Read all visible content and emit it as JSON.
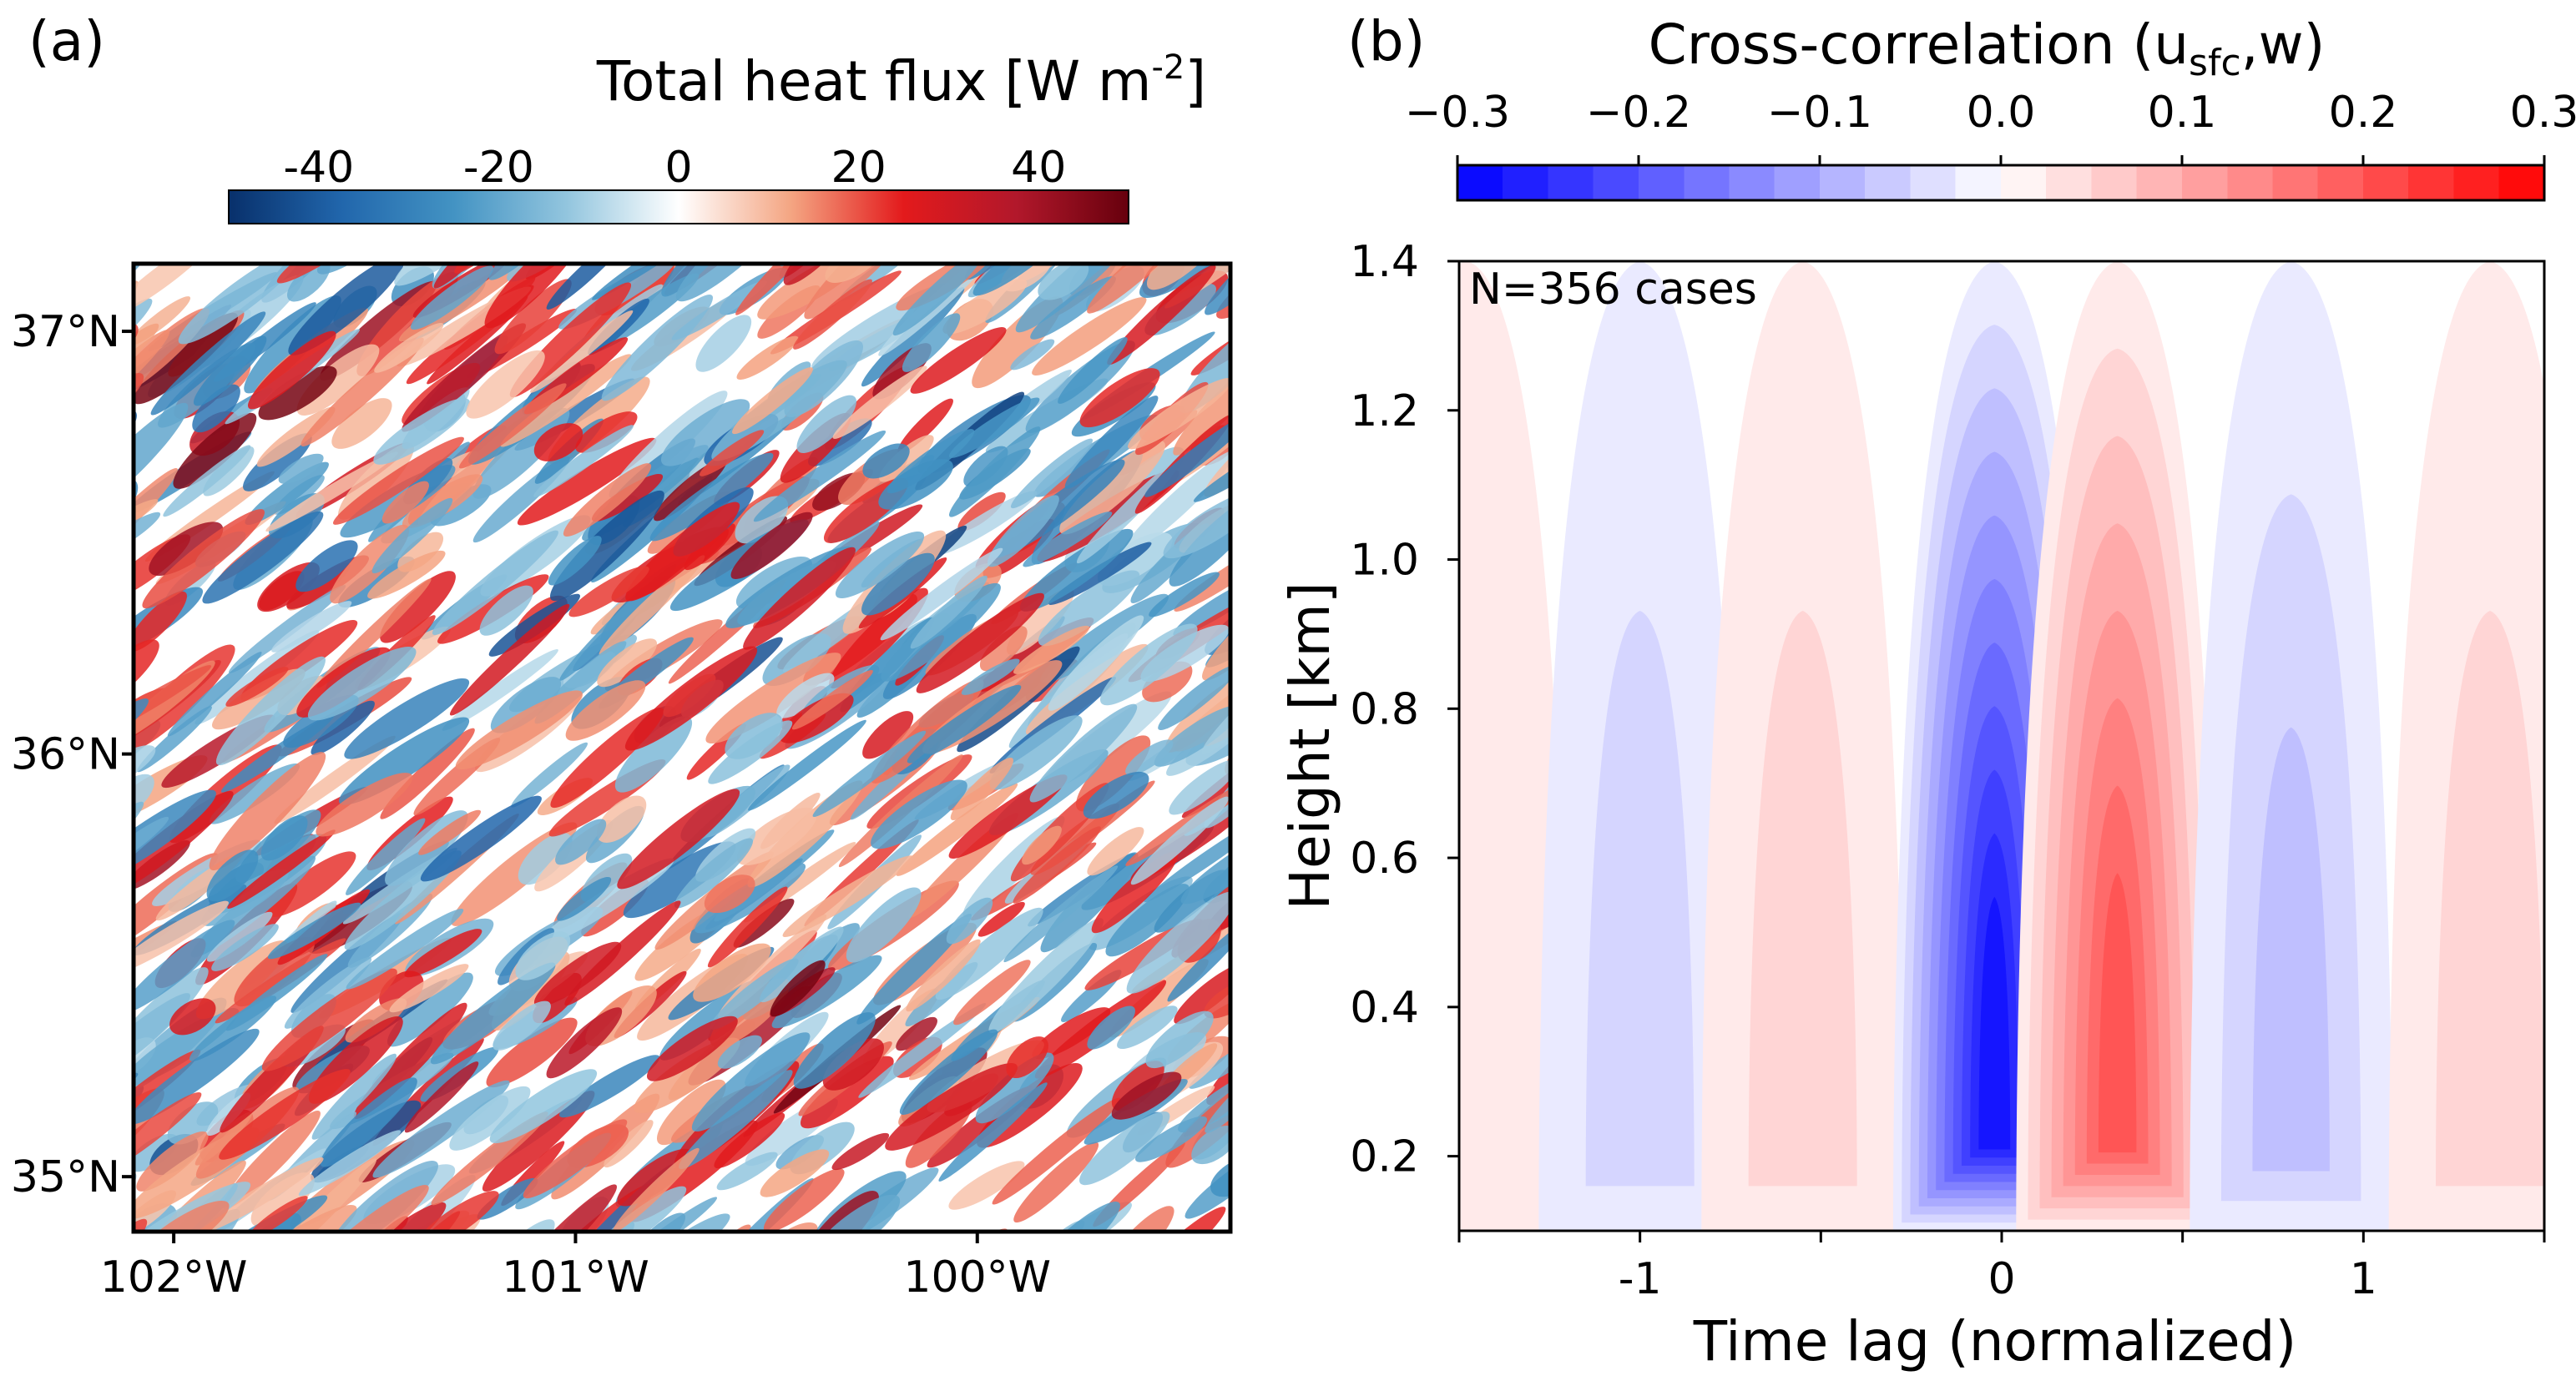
{
  "chart_data": [
    {
      "type": "heatmap",
      "panel_label": "(a)",
      "colorbar": {
        "label_main": "Total heat flux [W m",
        "label_sup": "-2",
        "label_end": "]",
        "range": [
          -50,
          50
        ],
        "ticks": [
          -40,
          -20,
          0,
          20,
          40
        ],
        "tick_labels": [
          "-40",
          "-20",
          "0",
          "20",
          "40"
        ],
        "colormap": [
          "#08306b",
          "#2166ac",
          "#4393c3",
          "#92c5de",
          "#ffffff",
          "#f4a582",
          "#e31a1c",
          "#b2182b",
          "#67000d"
        ]
      },
      "x_ticks": [
        -102,
        -101,
        -100
      ],
      "x_tick_labels": [
        "102°W",
        "101°W",
        "100°W"
      ],
      "y_ticks": [
        37,
        36,
        35
      ],
      "y_tick_labels": [
        "37°N",
        "36°N",
        "35°N"
      ],
      "xlim": [
        -102.1,
        -99.37
      ],
      "ylim": [
        34.87,
        37.16
      ],
      "field": "roll-like streaks of positive and negative flux oriented SW-NE"
    },
    {
      "type": "heatmap",
      "panel_label": "(b)",
      "title_main": "Cross-correlation (u",
      "title_sub": "sfc",
      "title_end": ",w)",
      "annotation": "N=356 cases",
      "xlabel": "Time lag (normalized)",
      "ylabel": "Height [km]",
      "xlim": [
        -1.5,
        1.5
      ],
      "ylim": [
        0.1,
        1.4
      ],
      "x_ticks": [
        -1.5,
        -1,
        -0.5,
        0,
        0.5,
        1,
        1.5
      ],
      "x_tick_labels": [
        "",
        "-1",
        "",
        "0",
        "",
        "1",
        ""
      ],
      "y_ticks": [
        0.2,
        0.4,
        0.6,
        0.8,
        1.0,
        1.2,
        1.4
      ],
      "y_tick_labels": [
        "0.2",
        "0.4",
        "0.6",
        "0.8",
        "1.0",
        "1.2",
        "1.4"
      ],
      "colorbar": {
        "range": [
          -0.3,
          0.3
        ],
        "ticks": [
          -0.3,
          -0.2,
          -0.1,
          0.0,
          0.1,
          0.2,
          0.3
        ],
        "tick_labels": [
          "−0.3",
          "−0.2",
          "−0.1",
          "0.0",
          "0.1",
          "0.2",
          "0.3"
        ],
        "levels": 24,
        "colormap": [
          "#0000ff",
          "#ffffff",
          "#ff0000"
        ]
      },
      "bands": [
        {
          "x": -1.48,
          "amplitude": 0.02
        },
        {
          "x": -1.0,
          "amplitude": -0.05
        },
        {
          "x": -0.55,
          "amplitude": 0.07
        },
        {
          "x": -0.02,
          "amplitude": -0.29
        },
        {
          "x": 0.32,
          "amplitude": 0.2
        },
        {
          "x": 0.8,
          "amplitude": -0.08
        },
        {
          "x": 1.35,
          "amplitude": 0.07
        }
      ]
    }
  ]
}
